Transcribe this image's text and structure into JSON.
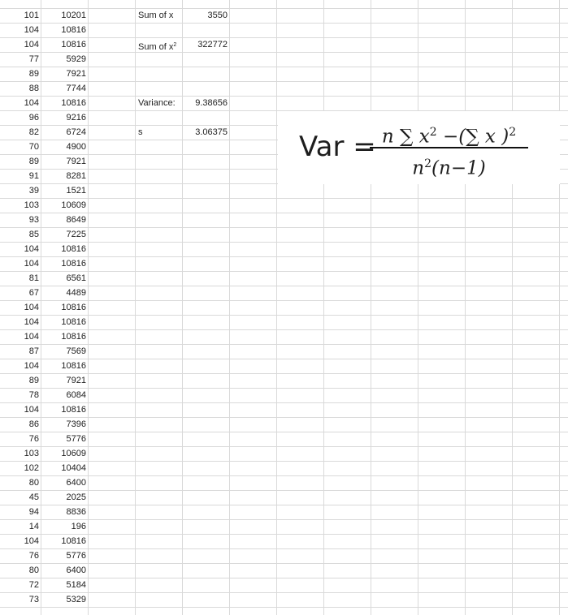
{
  "sheet": {
    "columns_ab": [
      [
        101,
        10201
      ],
      [
        104,
        10816
      ],
      [
        104,
        10816
      ],
      [
        77,
        5929
      ],
      [
        89,
        7921
      ],
      [
        88,
        7744
      ],
      [
        104,
        10816
      ],
      [
        96,
        9216
      ],
      [
        82,
        6724
      ],
      [
        70,
        4900
      ],
      [
        89,
        7921
      ],
      [
        91,
        8281
      ],
      [
        39,
        1521
      ],
      [
        103,
        10609
      ],
      [
        93,
        8649
      ],
      [
        85,
        7225
      ],
      [
        104,
        10816
      ],
      [
        104,
        10816
      ],
      [
        81,
        6561
      ],
      [
        67,
        4489
      ],
      [
        104,
        10816
      ],
      [
        104,
        10816
      ],
      [
        104,
        10816
      ],
      [
        87,
        7569
      ],
      [
        104,
        10816
      ],
      [
        89,
        7921
      ],
      [
        78,
        6084
      ],
      [
        104,
        10816
      ],
      [
        86,
        7396
      ],
      [
        76,
        5776
      ],
      [
        103,
        10609
      ],
      [
        102,
        10404
      ],
      [
        80,
        6400
      ],
      [
        45,
        2025
      ],
      [
        94,
        8836
      ],
      [
        14,
        196
      ],
      [
        104,
        10816
      ],
      [
        76,
        5776
      ],
      [
        80,
        6400
      ],
      [
        72,
        5184
      ],
      [
        73,
        5329
      ]
    ],
    "summary": [
      {
        "row": 0,
        "label": "Sum of x",
        "value": "3550"
      },
      {
        "row": 2,
        "label": "Sum of x²",
        "value": "322772"
      },
      {
        "row": 6,
        "label": "Variance:",
        "value": "9.38656"
      },
      {
        "row": 8,
        "label": "s",
        "value": "3.06375"
      }
    ]
  },
  "formula": {
    "lhs": "Var =",
    "numerator": "n ∑ x² −(∑ x )²",
    "denominator": "n²(n−1)"
  }
}
